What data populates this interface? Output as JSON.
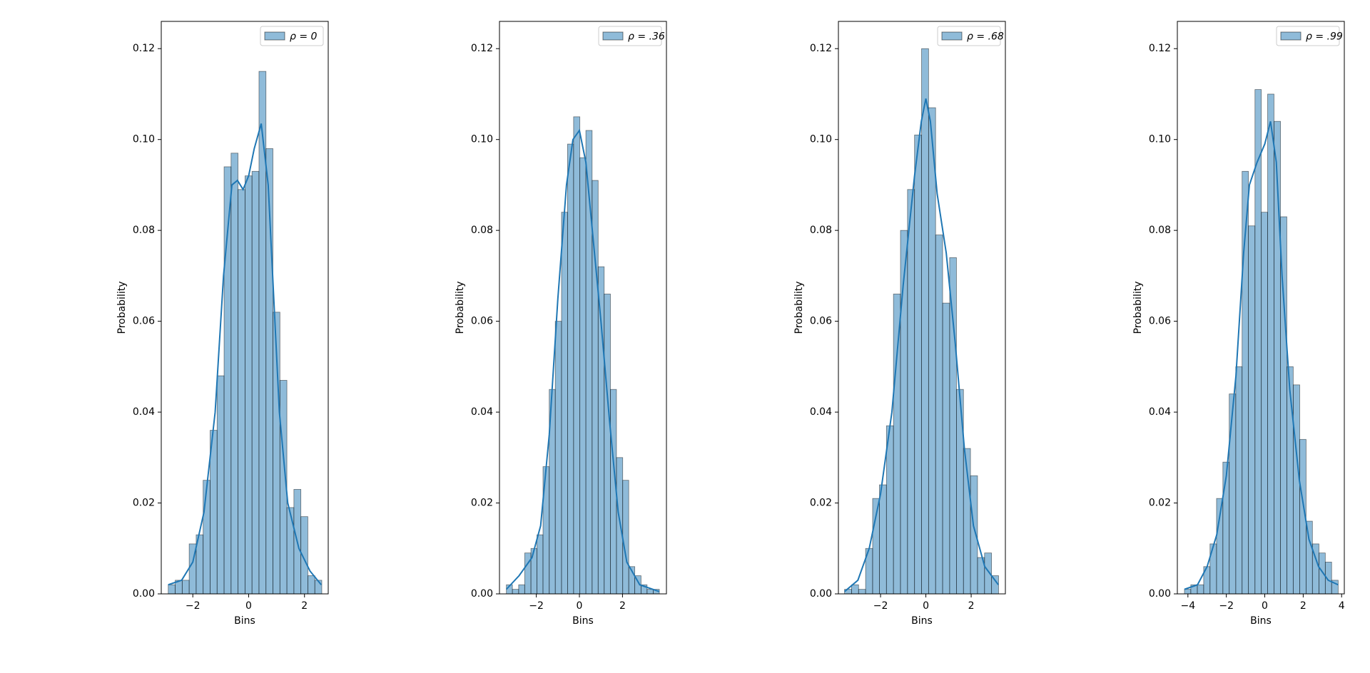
{
  "chart_data": [
    {
      "type": "histogram",
      "xlabel": "Bins",
      "ylabel": "Probability",
      "legend": "upper right",
      "xlim": [
        -3.13,
        2.85
      ],
      "ylim": [
        0,
        0.126
      ],
      "xticks": [
        {
          "value": -2,
          "label": "−2"
        },
        0,
        2
      ],
      "yticks": [
        {
          "value": 0,
          "label": "0.00"
        },
        {
          "value": 0.02,
          "label": "0.02"
        },
        {
          "value": 0.04,
          "label": "0.04"
        },
        {
          "value": 0.06,
          "label": "0.06"
        },
        {
          "value": 0.08,
          "label": "0.08"
        },
        {
          "value": 0.1,
          "label": "0.10"
        },
        {
          "value": 0.12,
          "label": "0.12"
        }
      ],
      "bins": [
        -2.88,
        -2.63,
        -2.38,
        -2.13,
        -1.88,
        -1.63,
        -1.38,
        -1.13,
        -0.88,
        -0.63,
        -0.38,
        -0.13,
        0.12,
        0.37,
        0.62,
        0.87,
        1.12,
        1.37,
        1.62,
        1.87,
        2.12,
        2.37,
        2.62
      ],
      "series": [
        {
          "name": "ρ = 0",
          "color": "#1f77b4",
          "values": [
            0.002,
            0.003,
            0.003,
            0.011,
            0.013,
            0.025,
            0.036,
            0.048,
            0.094,
            0.097,
            0.089,
            0.092,
            0.093,
            0.115,
            0.098,
            0.062,
            0.047,
            0.019,
            0.023,
            0.017,
            0.004,
            0.003
          ]
        }
      ],
      "kde": {
        "x": [
          -2.88,
          -2.4,
          -2,
          -1.6,
          -1.2,
          -0.9,
          -0.6,
          -0.4,
          -0.2,
          0,
          0.2,
          0.45,
          0.7,
          0.9,
          1.1,
          1.4,
          1.8,
          2.2,
          2.6
        ],
        "y": [
          0.002,
          0.003,
          0.007,
          0.018,
          0.04,
          0.07,
          0.09,
          0.091,
          0.089,
          0.092,
          0.098,
          0.1035,
          0.09,
          0.065,
          0.04,
          0.02,
          0.01,
          0.005,
          0.002
        ]
      }
    },
    {
      "type": "histogram",
      "xlabel": "Bins",
      "ylabel": "Probability",
      "legend": "upper right",
      "xlim": [
        -3.71,
        4.04
      ],
      "ylim": [
        0,
        0.126
      ],
      "xticks": [
        {
          "value": -2,
          "label": "−2"
        },
        0,
        2
      ],
      "yticks": [
        {
          "value": 0,
          "label": "0.00"
        },
        {
          "value": 0.02,
          "label": "0.02"
        },
        {
          "value": 0.04,
          "label": "0.04"
        },
        {
          "value": 0.06,
          "label": "0.06"
        },
        {
          "value": 0.08,
          "label": "0.08"
        },
        {
          "value": 0.1,
          "label": "0.10"
        },
        {
          "value": 0.12,
          "label": "0.12"
        }
      ],
      "bins": [
        -3.39,
        -3.11,
        -2.82,
        -2.54,
        -2.25,
        -1.97,
        -1.69,
        -1.4,
        -1.12,
        -0.83,
        -0.55,
        -0.27,
        0.02,
        0.3,
        0.59,
        0.87,
        1.15,
        1.44,
        1.72,
        2.01,
        2.29,
        2.57,
        2.86,
        3.14,
        3.43,
        3.71
      ],
      "series": [
        {
          "name": "ρ = .36",
          "color": "#1f77b4",
          "values": [
            0.002,
            0.001,
            0.002,
            0.009,
            0.01,
            0.013,
            0.028,
            0.045,
            0.06,
            0.084,
            0.099,
            0.105,
            0.096,
            0.102,
            0.091,
            0.072,
            0.066,
            0.045,
            0.03,
            0.025,
            0.006,
            0.004,
            0.002,
            0.001,
            0.001
          ]
        }
      ],
      "kde": {
        "x": [
          -3.39,
          -2.8,
          -2.2,
          -1.8,
          -1.4,
          -1,
          -0.6,
          -0.3,
          0,
          0.3,
          0.6,
          1,
          1.4,
          1.8,
          2.2,
          2.8,
          3.71
        ],
        "y": [
          0.001,
          0.004,
          0.008,
          0.015,
          0.035,
          0.065,
          0.09,
          0.1,
          0.102,
          0.095,
          0.08,
          0.06,
          0.038,
          0.018,
          0.007,
          0.002,
          0.0005
        ]
      }
    },
    {
      "type": "histogram",
      "xlabel": "Bins",
      "ylabel": "Probability",
      "legend": "upper right",
      "xlim": [
        -3.86,
        3.51
      ],
      "ylim": [
        0,
        0.126
      ],
      "xticks": [
        {
          "value": -2,
          "label": "−2"
        },
        0,
        2
      ],
      "yticks": [
        {
          "value": 0,
          "label": "0.00"
        },
        {
          "value": 0.02,
          "label": "0.02"
        },
        {
          "value": 0.04,
          "label": "0.04"
        },
        {
          "value": 0.06,
          "label": "0.06"
        },
        {
          "value": 0.08,
          "label": "0.08"
        },
        {
          "value": 0.1,
          "label": "0.10"
        },
        {
          "value": 0.12,
          "label": "0.12"
        }
      ],
      "bins": [
        -3.59,
        -3.28,
        -2.97,
        -2.66,
        -2.35,
        -2.05,
        -1.74,
        -1.43,
        -1.12,
        -0.81,
        -0.5,
        -0.19,
        0.12,
        0.43,
        0.74,
        1.05,
        1.35,
        1.66,
        1.97,
        2.28,
        2.59,
        2.9,
        3.21
      ],
      "series": [
        {
          "name": "ρ = .68",
          "color": "#1f77b4",
          "values": [
            0.001,
            0.002,
            0.001,
            0.01,
            0.021,
            0.024,
            0.037,
            0.066,
            0.08,
            0.089,
            0.101,
            0.12,
            0.107,
            0.079,
            0.064,
            0.074,
            0.045,
            0.032,
            0.026,
            0.008,
            0.009,
            0.004
          ]
        }
      ],
      "kde": {
        "x": [
          -3.59,
          -3,
          -2.5,
          -2,
          -1.5,
          -1,
          -0.5,
          -0.2,
          0,
          0.2,
          0.5,
          0.9,
          1.3,
          1.7,
          2.1,
          2.6,
          3.2
        ],
        "y": [
          0.0005,
          0.003,
          0.01,
          0.022,
          0.04,
          0.068,
          0.092,
          0.104,
          0.109,
          0.104,
          0.088,
          0.075,
          0.055,
          0.032,
          0.015,
          0.006,
          0.002
        ]
      }
    },
    {
      "type": "histogram",
      "xlabel": "Bins",
      "ylabel": "Probability",
      "legend": "upper right",
      "xlim": [
        -4.55,
        4.14
      ],
      "ylim": [
        0,
        0.126
      ],
      "xticks": [
        {
          "value": -4,
          "label": "−4"
        },
        {
          "value": -2,
          "label": "−2"
        },
        0,
        2,
        4
      ],
      "yticks": [
        {
          "value": 0,
          "label": "0.00"
        },
        {
          "value": 0.02,
          "label": "0.02"
        },
        {
          "value": 0.04,
          "label": "0.04"
        },
        {
          "value": 0.06,
          "label": "0.06"
        },
        {
          "value": 0.08,
          "label": "0.08"
        },
        {
          "value": 0.1,
          "label": "0.10"
        },
        {
          "value": 0.12,
          "label": "0.12"
        }
      ],
      "bins": [
        -4.18,
        -3.85,
        -3.51,
        -3.18,
        -2.85,
        -2.51,
        -2.18,
        -1.85,
        -1.51,
        -1.18,
        -0.85,
        -0.51,
        -0.18,
        0.15,
        0.48,
        0.82,
        1.15,
        1.48,
        1.82,
        2.15,
        2.48,
        2.82,
        3.15,
        3.48,
        3.82
      ],
      "series": [
        {
          "name": "ρ = .99",
          "color": "#1f77b4",
          "values": [
            0.001,
            0.002,
            0.002,
            0.006,
            0.011,
            0.021,
            0.029,
            0.044,
            0.05,
            0.093,
            0.081,
            0.111,
            0.084,
            0.11,
            0.104,
            0.083,
            0.05,
            0.046,
            0.034,
            0.016,
            0.011,
            0.009,
            0.007,
            0.003
          ]
        }
      ],
      "kde": {
        "x": [
          -4.18,
          -3.5,
          -3,
          -2.5,
          -2,
          -1.5,
          -1.1,
          -0.8,
          -0.4,
          0,
          0.3,
          0.6,
          0.9,
          1.3,
          1.8,
          2.3,
          2.8,
          3.3,
          3.82
        ],
        "y": [
          0.001,
          0.002,
          0.006,
          0.013,
          0.026,
          0.048,
          0.075,
          0.09,
          0.095,
          0.099,
          0.104,
          0.095,
          0.07,
          0.045,
          0.025,
          0.012,
          0.006,
          0.003,
          0.002
        ]
      }
    }
  ]
}
